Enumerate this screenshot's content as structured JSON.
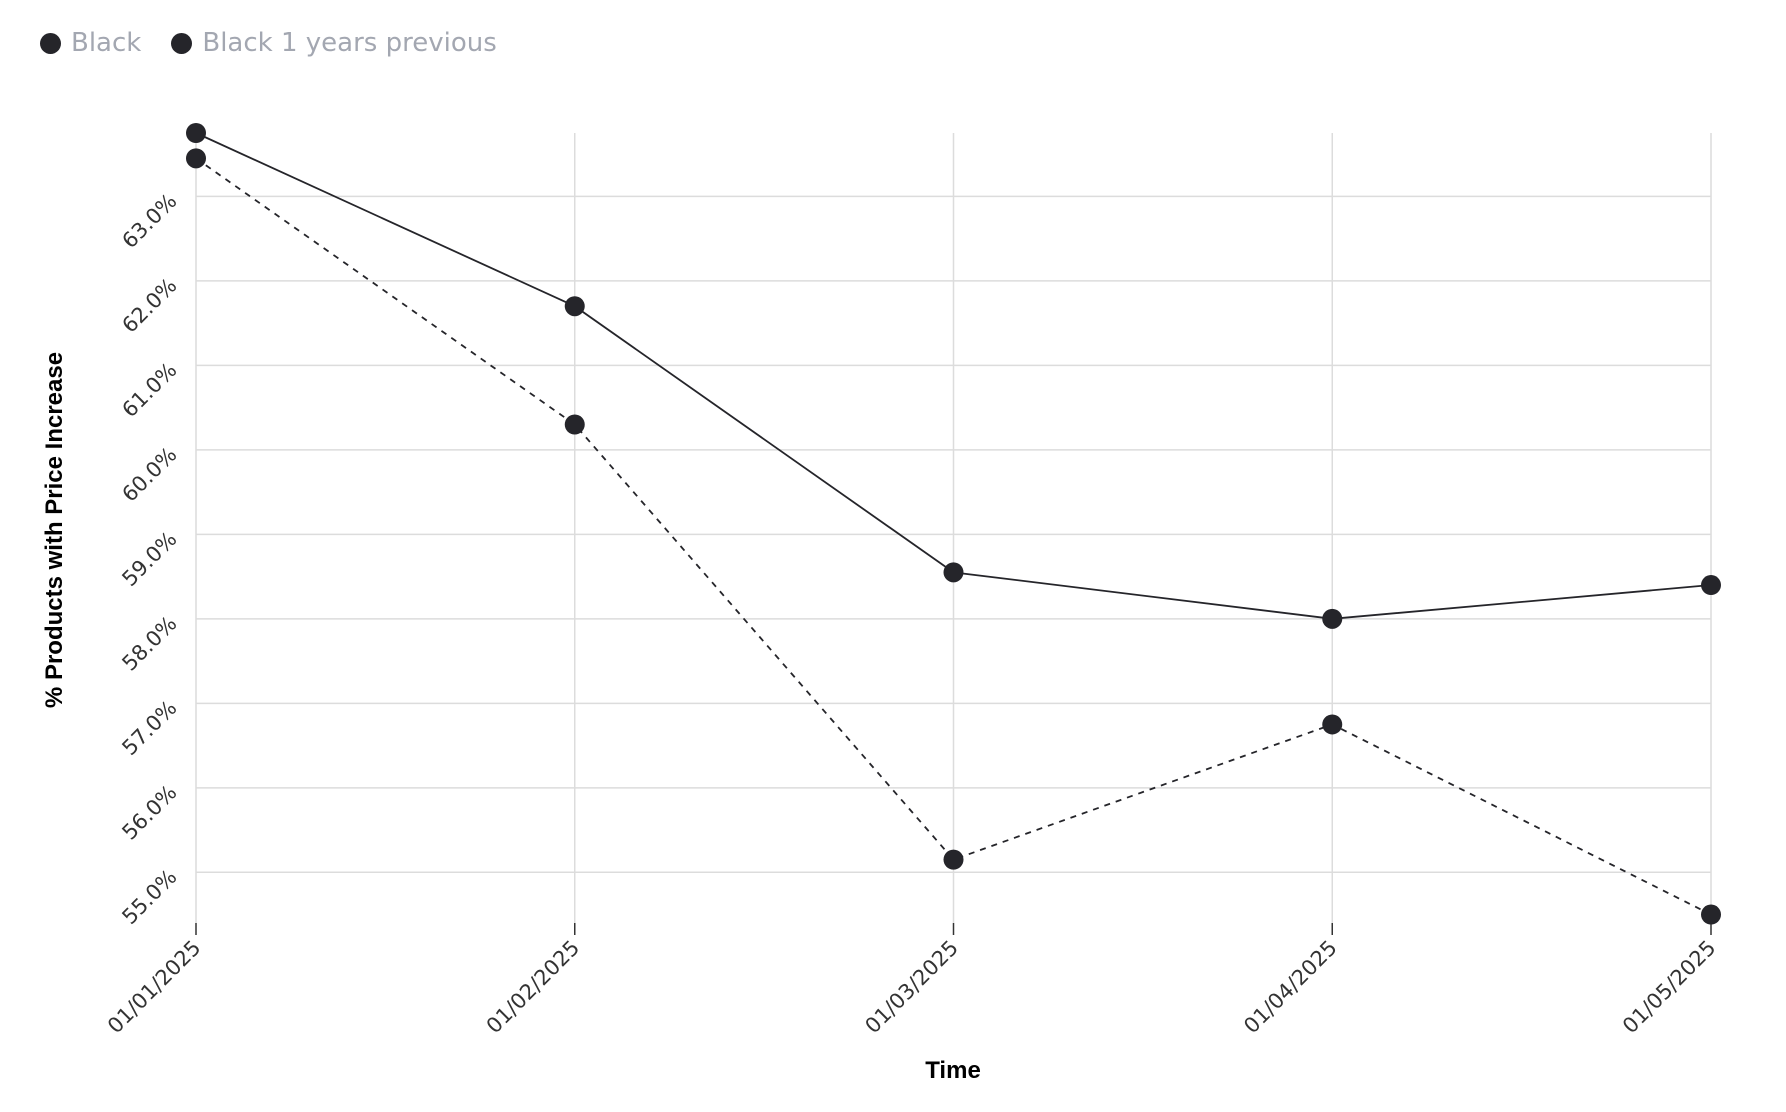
{
  "legend": {
    "items": [
      {
        "label": "Black",
        "color": "#25252a"
      },
      {
        "label": "Black 1 years previous",
        "color": "#25252a"
      }
    ]
  },
  "chart_data": {
    "type": "line",
    "xlabel": "Time",
    "ylabel": "% Products with Price Increase",
    "categories": [
      "01/01/2025",
      "01/02/2025",
      "01/03/2025",
      "01/04/2025",
      "01/05/2025"
    ],
    "yticks": [
      55.0,
      56.0,
      57.0,
      58.0,
      59.0,
      60.0,
      61.0,
      62.0,
      63.0
    ],
    "ytick_labels": [
      "55.0%",
      "56.0%",
      "57.0%",
      "58.0%",
      "59.0%",
      "60.0%",
      "61.0%",
      "62.0%",
      "63.0%"
    ],
    "ylim": [
      54.4,
      63.75
    ],
    "grid": true,
    "legend_position": "top-left",
    "series": [
      {
        "name": "Black",
        "line_style": "solid",
        "color": "#25252a",
        "values": [
          63.75,
          61.7,
          58.55,
          58.0,
          58.4
        ]
      },
      {
        "name": "Black 1 years previous",
        "line_style": "dashed",
        "color": "#25252a",
        "values": [
          63.45,
          60.3,
          55.15,
          56.75,
          54.5
        ]
      }
    ]
  }
}
